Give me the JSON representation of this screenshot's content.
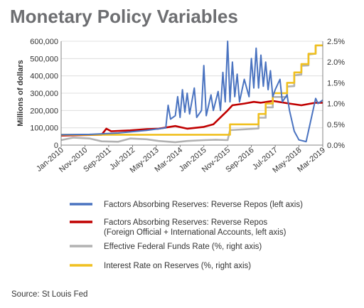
{
  "title": "Monetary Policy Variables",
  "source": "Source: St Louis Fed",
  "colors": {
    "blue": "#4a73c0",
    "red": "#c00000",
    "gray": "#b2b2b2",
    "gold": "#f0c020"
  },
  "chart_data": {
    "type": "line",
    "ylabel_left": "Millions of dollars",
    "ylim_left": [
      0,
      600000
    ],
    "ylim_right": [
      0.0,
      2.5
    ],
    "yticks_left": [
      "0",
      "100,000",
      "200,000",
      "300,000",
      "400,000",
      "500,000",
      "600,000"
    ],
    "yticks_right": [
      "0.0%",
      "0.5%",
      "1.0%",
      "1.5%",
      "2.0%",
      "2.5%"
    ],
    "xlim": [
      "2010-01",
      "2019-03"
    ],
    "xticks": [
      "Jan-2010",
      "Nov-2010",
      "Sep-2011",
      "Jul-2012",
      "May-2013",
      "Mar-2014",
      "Jan-2015",
      "Nov-2015",
      "Sep-2016",
      "Jul-2017",
      "May-2018",
      "Mar-2019"
    ],
    "legend_position": "bottom",
    "series": [
      {
        "name": "Factors Absorbing Reserves: Reverse Repos (left axis)",
        "axis": "left",
        "color": "blue",
        "points": [
          [
            "2010-01",
            60000
          ],
          [
            "2011-01",
            62000
          ],
          [
            "2012-01",
            70000
          ],
          [
            "2013-01",
            85000
          ],
          [
            "2013-09",
            100000
          ],
          [
            "2013-10",
            230000
          ],
          [
            "2013-11",
            150000
          ],
          [
            "2014-01",
            170000
          ],
          [
            "2014-02",
            280000
          ],
          [
            "2014-03",
            160000
          ],
          [
            "2014-04",
            320000
          ],
          [
            "2014-05",
            190000
          ],
          [
            "2014-06",
            300000
          ],
          [
            "2014-07",
            180000
          ],
          [
            "2014-09",
            330000
          ],
          [
            "2014-10",
            160000
          ],
          [
            "2014-12",
            200000
          ],
          [
            "2015-01",
            460000
          ],
          [
            "2015-02",
            170000
          ],
          [
            "2015-04",
            290000
          ],
          [
            "2015-05",
            200000
          ],
          [
            "2015-07",
            310000
          ],
          [
            "2015-08",
            200000
          ],
          [
            "2015-09",
            420000
          ],
          [
            "2015-10",
            250000
          ],
          [
            "2015-11",
            600000
          ],
          [
            "2015-12",
            250000
          ],
          [
            "2016-01",
            480000
          ],
          [
            "2016-02",
            280000
          ],
          [
            "2016-03",
            410000
          ],
          [
            "2016-04",
            250000
          ],
          [
            "2016-06",
            380000
          ],
          [
            "2016-08",
            280000
          ],
          [
            "2016-09",
            500000
          ],
          [
            "2016-10",
            330000
          ],
          [
            "2016-11",
            560000
          ],
          [
            "2016-12",
            330000
          ],
          [
            "2017-01",
            520000
          ],
          [
            "2017-02",
            340000
          ],
          [
            "2017-03",
            480000
          ],
          [
            "2017-04",
            320000
          ],
          [
            "2017-05",
            430000
          ],
          [
            "2017-06",
            280000
          ],
          [
            "2017-07",
            320000
          ],
          [
            "2017-09",
            380000
          ],
          [
            "2017-10",
            250000
          ],
          [
            "2017-12",
            290000
          ],
          [
            "2018-01",
            200000
          ],
          [
            "2018-03",
            80000
          ],
          [
            "2018-05",
            30000
          ],
          [
            "2018-08",
            20000
          ],
          [
            "2018-12",
            270000
          ],
          [
            "2019-01",
            240000
          ],
          [
            "2019-03",
            260000
          ]
        ]
      },
      {
        "name": "Factors Absorbing Reserves: Reverse Repos (Foreign Official + International Accounts, left axis)",
        "axis": "left",
        "color": "red",
        "points": [
          [
            "2010-01",
            55000
          ],
          [
            "2011-06",
            60000
          ],
          [
            "2011-08",
            95000
          ],
          [
            "2011-10",
            80000
          ],
          [
            "2012-06",
            85000
          ],
          [
            "2013-01",
            92000
          ],
          [
            "2013-06",
            95000
          ],
          [
            "2014-01",
            110000
          ],
          [
            "2014-06",
            95000
          ],
          [
            "2015-01",
            105000
          ],
          [
            "2015-05",
            120000
          ],
          [
            "2015-08",
            160000
          ],
          [
            "2015-11",
            200000
          ],
          [
            "2016-01",
            230000
          ],
          [
            "2016-06",
            240000
          ],
          [
            "2016-10",
            250000
          ],
          [
            "2017-01",
            245000
          ],
          [
            "2017-06",
            255000
          ],
          [
            "2018-01",
            240000
          ],
          [
            "2018-06",
            230000
          ],
          [
            "2018-12",
            245000
          ],
          [
            "2019-03",
            245000
          ]
        ]
      },
      {
        "name": "Effective Federal Funds Rate (%, right axis)",
        "axis": "right",
        "color": "gray",
        "points": [
          [
            "2010-01",
            0.12
          ],
          [
            "2010-06",
            0.18
          ],
          [
            "2011-01",
            0.16
          ],
          [
            "2011-06",
            0.09
          ],
          [
            "2012-01",
            0.08
          ],
          [
            "2012-06",
            0.16
          ],
          [
            "2013-01",
            0.14
          ],
          [
            "2013-06",
            0.1
          ],
          [
            "2014-01",
            0.07
          ],
          [
            "2014-06",
            0.1
          ],
          [
            "2015-01",
            0.12
          ],
          [
            "2015-06",
            0.13
          ],
          [
            "2015-11",
            0.12
          ],
          [
            "2015-12",
            0.36
          ],
          [
            "2016-06",
            0.38
          ],
          [
            "2016-12",
            0.4
          ],
          [
            "2016-12",
            0.66
          ],
          [
            "2017-03",
            0.66
          ],
          [
            "2017-03",
            0.91
          ],
          [
            "2017-06",
            0.91
          ],
          [
            "2017-06",
            1.16
          ],
          [
            "2017-12",
            1.16
          ],
          [
            "2017-12",
            1.41
          ],
          [
            "2018-03",
            1.42
          ],
          [
            "2018-03",
            1.68
          ],
          [
            "2018-06",
            1.7
          ],
          [
            "2018-06",
            1.91
          ],
          [
            "2018-09",
            1.92
          ],
          [
            "2018-09",
            2.18
          ],
          [
            "2018-12",
            2.2
          ],
          [
            "2018-12",
            2.4
          ],
          [
            "2019-03",
            2.4
          ]
        ]
      },
      {
        "name": "Interest Rate on Reserves (%, right axis)",
        "axis": "right",
        "color": "gold",
        "points": [
          [
            "2010-01",
            0.25
          ],
          [
            "2015-12",
            0.25
          ],
          [
            "2015-12",
            0.5
          ],
          [
            "2016-12",
            0.5
          ],
          [
            "2016-12",
            0.75
          ],
          [
            "2017-03",
            0.75
          ],
          [
            "2017-03",
            1.0
          ],
          [
            "2017-06",
            1.0
          ],
          [
            "2017-06",
            1.25
          ],
          [
            "2017-12",
            1.25
          ],
          [
            "2017-12",
            1.5
          ],
          [
            "2018-03",
            1.5
          ],
          [
            "2018-03",
            1.75
          ],
          [
            "2018-06",
            1.75
          ],
          [
            "2018-06",
            1.95
          ],
          [
            "2018-09",
            1.95
          ],
          [
            "2018-09",
            2.2
          ],
          [
            "2018-12",
            2.2
          ],
          [
            "2018-12",
            2.4
          ],
          [
            "2019-03",
            2.4
          ]
        ]
      }
    ]
  },
  "legend": [
    {
      "color": "blue",
      "lines": [
        "Factors Absorbing Reserves: Reverse Repos (left axis)"
      ]
    },
    {
      "color": "red",
      "lines": [
        "Factors Absorbing Reserves: Reverse Repos",
        "(Foreign Official + International Accounts, left axis)"
      ]
    },
    {
      "color": "gray",
      "lines": [
        "Effective Federal Funds Rate (%, right axis)"
      ]
    },
    {
      "color": "gold",
      "lines": [
        "Interest Rate on Reserves (%, right axis)"
      ]
    }
  ]
}
